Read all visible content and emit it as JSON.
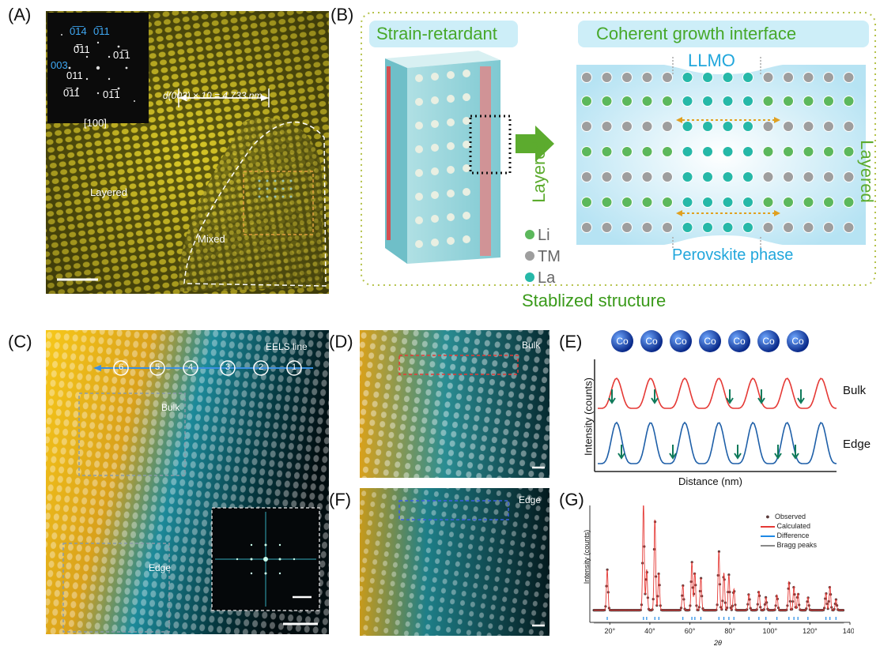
{
  "panels": {
    "A": {
      "label": "(A)",
      "inset_zone": "[100]",
      "fft_labels": [
        "0̅1̅4",
        "0̅11",
        "003",
        "0̅11",
        "01̅1",
        "011",
        "0̅11",
        "01̅1"
      ],
      "measure": "d(003) × 10 = 4.733 nm",
      "region_layered": "Layered",
      "region_mixed": "Mixed"
    },
    "B": {
      "label": "(B)",
      "strain_title": "Strain-retardant",
      "coherent_title": "Coherent growth interface",
      "llmo": "LLMO",
      "layered_left": "Layered",
      "layered_right": "Layered",
      "perovskite": "Perovskite phase",
      "legend": [
        {
          "label": "Li",
          "color": "#5cb85c"
        },
        {
          "label": "TM",
          "color": "#9e9e9e"
        },
        {
          "label": "La",
          "color": "#26b8a8"
        }
      ],
      "caption": "Stablized structure"
    },
    "C": {
      "label": "(C)",
      "eels": "EELS line",
      "points": [
        "6",
        "5",
        "4",
        "3",
        "2",
        "1"
      ],
      "bulk": "Bulk",
      "edge": "Edge"
    },
    "D": {
      "label": "(D)",
      "tag": "Bulk"
    },
    "E": {
      "label": "(E)",
      "co_label": "Co",
      "co_count": 7,
      "series_bulk": "Bulk",
      "series_edge": "Edge",
      "ylabel": "Intensity (counts)",
      "xlabel": "Distance (nm)"
    },
    "F": {
      "label": "(F)",
      "tag": "Edge"
    },
    "G": {
      "label": "(G)"
    }
  },
  "colors": {
    "stem_yellow": "#e6c21a",
    "stem_cyan": "#1fb6c8",
    "bulk_red": "#e53935",
    "edge_blue": "#1e5fa8",
    "arrow_green": "#0f7a5a",
    "dotted_border": "#b5c24a",
    "accent_green": "#5cab2e",
    "accent_cyan": "#22a7dc"
  },
  "chart_data": {
    "type": "line",
    "title": "",
    "xlabel": "2θ",
    "ylabel": "Intensity (counts)",
    "xlim": [
      10,
      140
    ],
    "xticks": [
      "20°",
      "40°",
      "60°",
      "80°",
      "100°",
      "120°",
      "140°"
    ],
    "legend_position": "top-right",
    "series": [
      {
        "name": "Observed",
        "color": "#5a3a3a",
        "marker": "circle"
      },
      {
        "name": "Calculated",
        "color": "#e53935"
      },
      {
        "name": "Difference",
        "color": "#1e88e5"
      },
      {
        "name": "Bragg peaks",
        "color": "#888888"
      }
    ],
    "peaks": [
      {
        "x": 18.7,
        "y": 0.38
      },
      {
        "x": 36.8,
        "y": 1.0
      },
      {
        "x": 38.4,
        "y": 0.38
      },
      {
        "x": 42.5,
        "y": 0.85
      },
      {
        "x": 44.5,
        "y": 0.35
      },
      {
        "x": 56.5,
        "y": 0.23
      },
      {
        "x": 61.0,
        "y": 0.45
      },
      {
        "x": 62.5,
        "y": 0.35
      },
      {
        "x": 65.5,
        "y": 0.3
      },
      {
        "x": 74.5,
        "y": 0.55
      },
      {
        "x": 77.0,
        "y": 0.35
      },
      {
        "x": 79.5,
        "y": 0.33
      },
      {
        "x": 82.0,
        "y": 0.2
      },
      {
        "x": 89.5,
        "y": 0.15
      },
      {
        "x": 94.5,
        "y": 0.18
      },
      {
        "x": 98.0,
        "y": 0.12
      },
      {
        "x": 103.5,
        "y": 0.14
      },
      {
        "x": 109.5,
        "y": 0.27
      },
      {
        "x": 112.0,
        "y": 0.22
      },
      {
        "x": 114.0,
        "y": 0.16
      },
      {
        "x": 119.0,
        "y": 0.12
      },
      {
        "x": 128.0,
        "y": 0.16
      },
      {
        "x": 130.0,
        "y": 0.22
      },
      {
        "x": 133.0,
        "y": 0.1
      }
    ]
  }
}
